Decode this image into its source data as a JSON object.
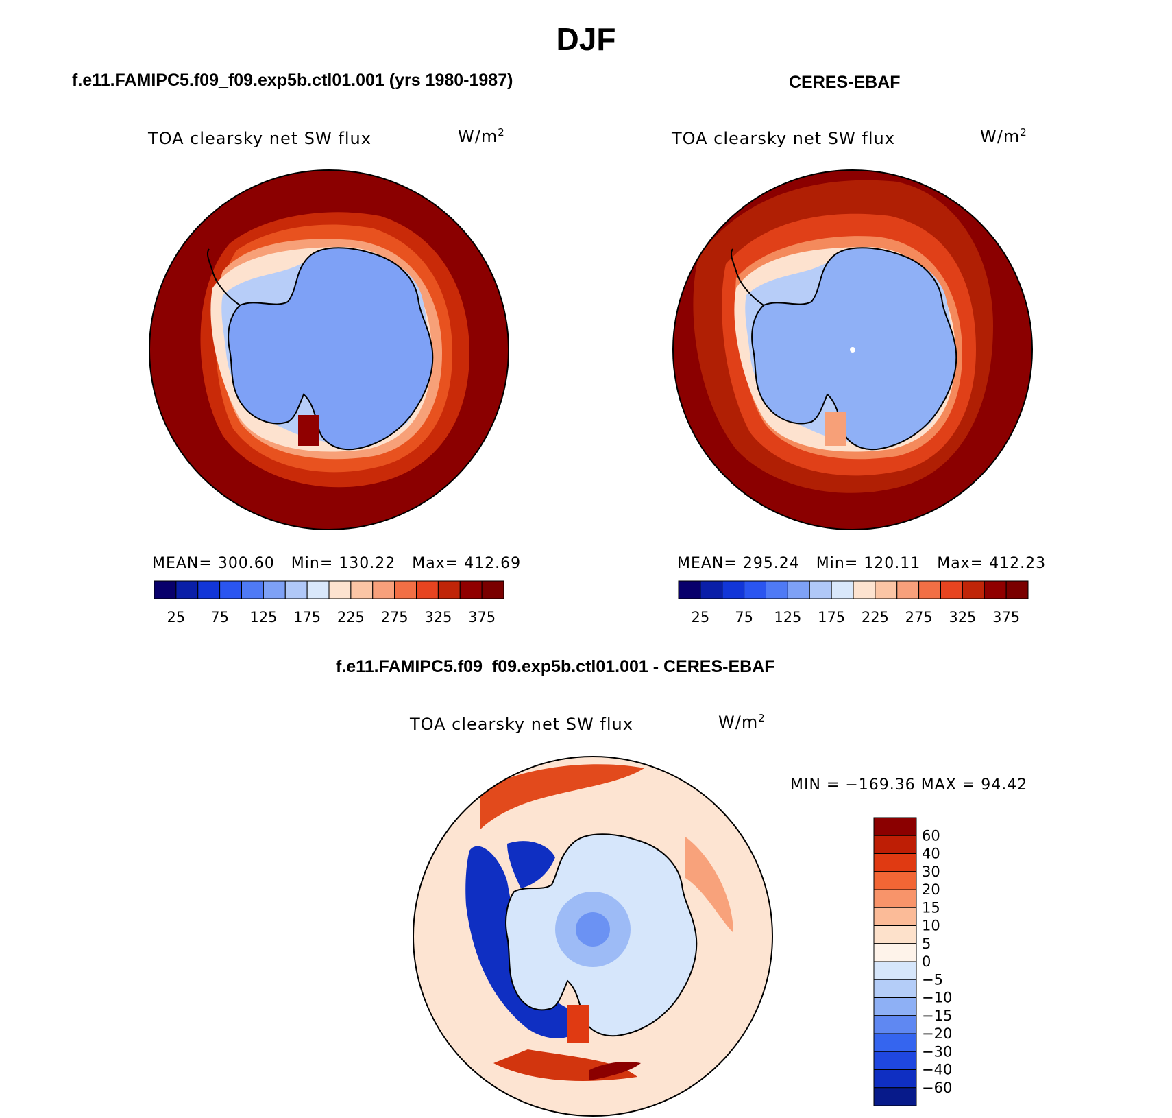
{
  "figure": {
    "season": "DJF"
  },
  "panels": [
    {
      "title": "f.e11.FAMIPC5.f09_f09.exp5b.ctl01.001 (yrs 1980-1987)",
      "variable": "TOA clearsky net SW flux",
      "units": "W/m",
      "units_exp": "2",
      "stats": {
        "mean": "MEAN= 300.60",
        "min": "Min= 130.22",
        "max": "Max= 412.69"
      }
    },
    {
      "title": "CERES-EBAF",
      "variable": "TOA clearsky net SW flux",
      "units": "W/m",
      "units_exp": "2",
      "stats": {
        "mean": "MEAN= 295.24",
        "min": "Min= 120.11",
        "max": "Max= 412.23"
      }
    }
  ],
  "difference": {
    "title": "f.e11.FAMIPC5.f09_f09.exp5b.ctl01.001 - CERES-EBAF",
    "variable": "TOA clearsky net SW flux",
    "units": "W/m",
    "units_exp": "2",
    "minmax": "MIN = −169.36 MAX =  94.42"
  },
  "chart_data": [
    {
      "type": "heatmap",
      "projection": "south polar stereographic",
      "title": "f.e11.FAMIPC5.f09_f09.exp5b.ctl01.001 (yrs 1980-1987)",
      "variable": "TOA clearsky net SW flux",
      "units": "W/m2",
      "stats": {
        "mean": 300.6,
        "min": 130.22,
        "max": 412.69
      },
      "colorbar": {
        "orientation": "horizontal",
        "levels": [
          25,
          50,
          75,
          100,
          125,
          150,
          175,
          200,
          225,
          250,
          275,
          300,
          325,
          350,
          375
        ],
        "tick_labels": [
          "25",
          "75",
          "125",
          "175",
          "225",
          "275",
          "325",
          "375"
        ],
        "colors": [
          "#08006b",
          "#0a1fa8",
          "#1236d8",
          "#2a55f0",
          "#4f7af5",
          "#7ea1f6",
          "#b0c8f8",
          "#d9e8fb",
          "#fde3d0",
          "#fbc5a5",
          "#f8a07b",
          "#f26f45",
          "#e74420",
          "#c02508",
          "#900000",
          "#7a0000"
        ]
      }
    },
    {
      "type": "heatmap",
      "projection": "south polar stereographic",
      "title": "CERES-EBAF",
      "variable": "TOA clearsky net SW flux",
      "units": "W/m2",
      "stats": {
        "mean": 295.24,
        "min": 120.11,
        "max": 412.23
      },
      "colorbar": {
        "orientation": "horizontal",
        "levels": [
          25,
          50,
          75,
          100,
          125,
          150,
          175,
          200,
          225,
          250,
          275,
          300,
          325,
          350,
          375
        ],
        "tick_labels": [
          "25",
          "75",
          "125",
          "175",
          "225",
          "275",
          "325",
          "375"
        ],
        "colors": [
          "#08006b",
          "#0a1fa8",
          "#1236d8",
          "#2a55f0",
          "#4f7af5",
          "#7ea1f6",
          "#b0c8f8",
          "#d9e8fb",
          "#fde3d0",
          "#fbc5a5",
          "#f8a07b",
          "#f26f45",
          "#e74420",
          "#c02508",
          "#900000",
          "#7a0000"
        ]
      }
    },
    {
      "type": "heatmap",
      "projection": "south polar stereographic",
      "title": "f.e11.FAMIPC5.f09_f09.exp5b.ctl01.001 - CERES-EBAF",
      "variable": "TOA clearsky net SW flux",
      "units": "W/m2",
      "stats": {
        "min": -169.36,
        "max": 94.42
      },
      "colorbar": {
        "orientation": "vertical",
        "levels": [
          -60,
          -40,
          -30,
          -20,
          -15,
          -10,
          -5,
          0,
          5,
          10,
          15,
          20,
          30,
          40,
          60
        ],
        "tick_labels": [
          "60",
          "40",
          "30",
          "20",
          "15",
          "10",
          "5",
          "0",
          "−5",
          "−10",
          "−15",
          "−20",
          "−30",
          "−40",
          "−60"
        ],
        "colors": [
          "#8b0000",
          "#be1e05",
          "#e03a12",
          "#f26635",
          "#f8946a",
          "#fbbb98",
          "#fde1cb",
          "#fef3ea",
          "#d6e6fb",
          "#b4cdf8",
          "#8eb0f5",
          "#5f88f2",
          "#3565ef",
          "#1f47e0",
          "#0f2fc2",
          "#071a8a"
        ]
      }
    }
  ],
  "colors": {
    "ocean_model": "#8b0000",
    "ocean_obs": "#8b0000",
    "diff_ocean": "#fde4d2",
    "land": "#7ea1f6",
    "coast": "#000000"
  }
}
